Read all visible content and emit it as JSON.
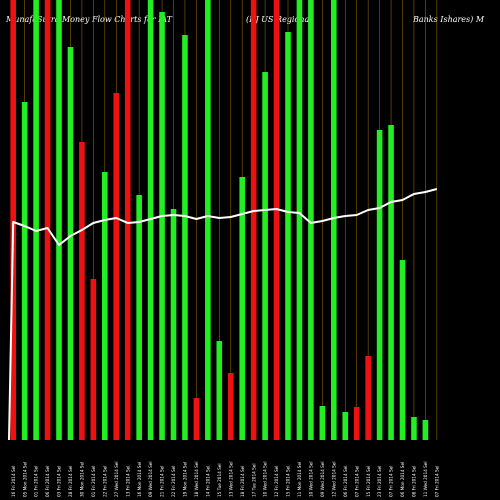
{
  "chart_data": {
    "type": "bar",
    "title_left": "MunafaSutra Money Flow Charts for IAT",
    "title_mid": "(DJ US Regional",
    "title_right": "Banks Ishares) M",
    "ylim": [
      0,
      440
    ],
    "colors": {
      "up": "#22ee22",
      "down": "#ee1111",
      "line": "#ffffff",
      "grid": "#b8860b",
      "background": "#000000"
    },
    "categories": [
      "16 Fri 2014 Sel",
      "05 Mon 2014 Sel",
      "01 Fri 2014 Sel",
      "06 Fri 2014 Sel",
      "03 Fri 2014 Sel",
      "28 Fri 2014 Sel",
      "30 Mon 2014 Sel",
      "01 Fri 2014 Sel",
      "22 Fri 2014 Sel",
      "27 Wed 2014 Sel",
      "13 Fri 2014 Sel",
      "16 Mon 2014 Sel",
      "09 Wed 2014 Sel",
      "21 Fri 2014 Sel",
      "22 Fri 2014 Sel",
      "19 Mon 2014 Sel",
      "18 Wed 2014 Sel",
      "14 Fri 2014 Sel",
      "15 Tue 2014 Sel",
      "13 Wed 2014 Sel",
      "18 Fri 2014 Sel",
      "17 Tue 2014 Sel",
      "10 Wed 2014 Sel",
      "12 Fri 2014 Sel",
      "15 Fri 2014 Sel",
      "11 Mon 2014 Sel",
      "10 Wed 2014 Sel",
      "09 Wed 2014 Sel",
      "12 Wed 2014 Sel",
      "06 Fri 2014 Sel",
      "07 Fri 2014 Sel",
      "15 Fri 2014 Sel",
      "23 Fri 2014 Sel",
      "07 Fri 2014 Sel",
      "06 Mon 2014 Sel",
      "08 Fri 2014 Sel",
      "11 Wed 2014 Sel",
      "07 Fri 2014 Sel"
    ],
    "values": [
      440,
      338,
      440,
      440,
      440,
      393,
      298,
      161,
      268,
      347,
      440,
      245,
      440,
      428,
      231,
      405,
      42,
      440,
      99,
      67,
      263,
      440,
      368,
      440,
      408,
      440,
      440,
      34,
      440,
      28,
      33,
      84,
      310,
      315,
      180,
      23,
      20,
      0
    ],
    "directions": [
      "down",
      "up",
      "up",
      "down",
      "up",
      "up",
      "down",
      "down",
      "up",
      "down",
      "down",
      "up",
      "up",
      "up",
      "up",
      "up",
      "down",
      "up",
      "up",
      "down",
      "up",
      "down",
      "up",
      "down",
      "up",
      "up",
      "up",
      "up",
      "up",
      "up",
      "down",
      "down",
      "up",
      "up",
      "up",
      "up",
      "up",
      "up"
    ],
    "line": [
      218,
      214,
      209,
      212,
      195,
      204,
      210,
      217,
      220,
      222,
      217,
      218,
      221,
      224,
      225,
      224,
      221,
      224,
      222,
      223,
      226,
      229,
      230,
      231,
      228,
      227,
      217,
      219,
      222,
      224,
      225,
      230,
      232,
      238,
      240,
      246,
      248,
      251
    ]
  }
}
